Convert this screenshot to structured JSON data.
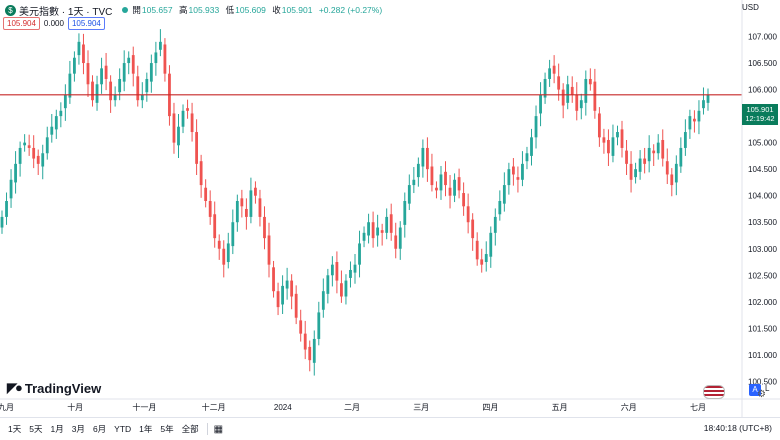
{
  "header": {
    "symbol_badge": "$",
    "title": "美元指數 · 1天 · TVC",
    "ohlc": [
      {
        "k": "開",
        "v": "105.657"
      },
      {
        "k": "高",
        "v": "105.933"
      },
      {
        "k": "低",
        "v": "105.609"
      },
      {
        "k": "收",
        "v": "105.901"
      }
    ],
    "change": "+0.282 (+0.27%)",
    "sell_price": "105.904",
    "spread": "0.000",
    "buy_price": "105.904",
    "currency": "USD"
  },
  "price_tag": {
    "price": "105.901",
    "countdown": "12:19:42"
  },
  "logo_text": "TradingView",
  "controls": {
    "auto": "A",
    "log": "L"
  },
  "bottom_bar": {
    "ranges": [
      "1天",
      "5天",
      "1月",
      "3月",
      "6月",
      "YTD",
      "1年",
      "5年",
      "全部"
    ],
    "time": "18:40:18 (UTC+8)"
  },
  "colors": {
    "up": "#26a69a",
    "down": "#ef5350",
    "price_line": "#c62828",
    "tag_bg": "#0a7c5c"
  },
  "chart_data": {
    "type": "candlestick",
    "y_ticks": [
      "107.000",
      "106.500",
      "106.000",
      "105.500",
      "105.000",
      "104.500",
      "104.000",
      "103.500",
      "103.000",
      "102.500",
      "102.000",
      "101.500",
      "101.000",
      "100.500"
    ],
    "ylim": [
      100.3,
      107.5
    ],
    "x_labels": [
      "九月",
      "十月",
      "十一月",
      "十二月",
      "2024",
      "二月",
      "三月",
      "四月",
      "五月",
      "六月",
      "七月"
    ],
    "last_price": 105.901,
    "close_series": [
      103.6,
      103.9,
      104.3,
      104.6,
      104.9,
      105.0,
      104.9,
      104.7,
      104.6,
      104.8,
      105.1,
      105.3,
      105.5,
      105.6,
      105.9,
      106.3,
      106.6,
      106.9,
      106.5,
      106.1,
      105.8,
      106.1,
      106.4,
      106.2,
      105.8,
      105.9,
      106.2,
      106.5,
      106.6,
      106.3,
      105.8,
      105.9,
      106.2,
      106.5,
      106.7,
      106.9,
      106.3,
      105.5,
      105.0,
      105.3,
      105.6,
      105.6,
      105.2,
      104.6,
      104.2,
      103.9,
      103.6,
      103.2,
      103.0,
      102.7,
      103.1,
      103.5,
      103.9,
      103.8,
      103.6,
      104.1,
      104.0,
      103.6,
      103.2,
      102.7,
      102.2,
      101.9,
      102.3,
      102.4,
      102.1,
      101.7,
      101.4,
      101.1,
      100.9,
      101.3,
      101.8,
      102.2,
      102.5,
      102.7,
      102.4,
      102.1,
      102.4,
      102.6,
      102.7,
      103.1,
      103.3,
      103.5,
      103.2,
      103.4,
      103.3,
      103.6,
      103.3,
      103.0,
      103.4,
      103.9,
      104.2,
      104.3,
      104.6,
      104.9,
      104.5,
      104.2,
      104.1,
      104.4,
      104.2,
      104.0,
      104.3,
      104.1,
      103.8,
      103.5,
      103.2,
      102.8,
      102.7,
      102.9,
      103.3,
      103.6,
      103.9,
      104.2,
      104.5,
      104.4,
      104.3,
      104.6,
      104.8,
      105.1,
      105.5,
      105.9,
      106.2,
      106.4,
      106.3,
      106.0,
      105.7,
      106.1,
      105.9,
      105.6,
      105.8,
      106.2,
      106.1,
      105.6,
      105.1,
      105.0,
      104.8,
      105.1,
      105.2,
      104.9,
      104.6,
      104.3,
      104.5,
      104.7,
      104.6,
      104.9,
      104.8,
      105.0,
      104.7,
      104.4,
      104.2,
      104.6,
      104.9,
      105.2,
      105.5,
      105.4,
      105.6,
      105.8,
      105.9
    ]
  }
}
